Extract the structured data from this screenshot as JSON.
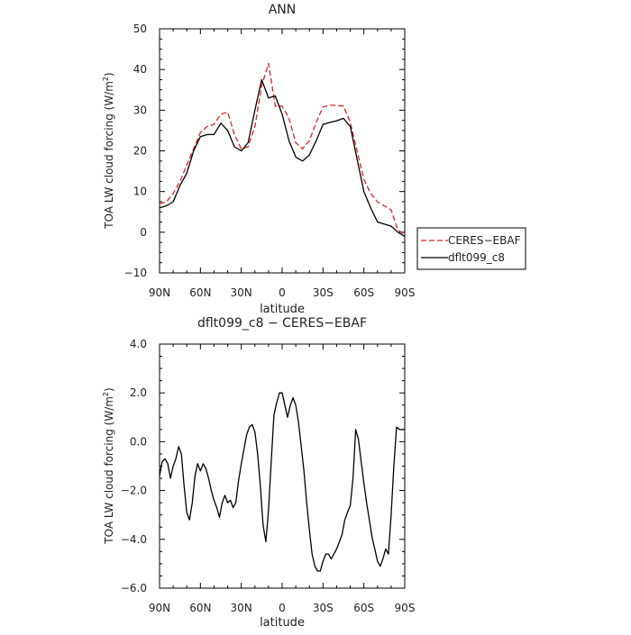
{
  "chart_data": [
    {
      "type": "line",
      "title": "ANN",
      "xlabel": "latitude",
      "ylabel": "TOA LW cloud forcing (W/m",
      "ylabel_sup": "2",
      "ylabel_close": ")",
      "xlim": [
        90,
        -90
      ],
      "ylim": [
        -10,
        50
      ],
      "x_ticks": [
        90,
        60,
        30,
        0,
        -30,
        -60,
        -90
      ],
      "x_tick_labels": [
        "90N",
        "60N",
        "30N",
        "0",
        "30S",
        "60S",
        "90S"
      ],
      "y_ticks": [
        -10,
        0,
        10,
        20,
        30,
        40,
        50
      ],
      "y_tick_labels": [
        "−10",
        "0",
        "10",
        "20",
        "30",
        "40",
        "50"
      ],
      "grid": false,
      "legend_placement": "right, outside plot",
      "series": [
        {
          "name": "CERES−EBAF",
          "color": "#dd2222",
          "dash": "dashed",
          "x": [
            90,
            85,
            80,
            75,
            70,
            65,
            60,
            55,
            50,
            45,
            40,
            35,
            30,
            25,
            20,
            15,
            10,
            5,
            0,
            -5,
            -10,
            -15,
            -20,
            -25,
            -30,
            -35,
            -40,
            -45,
            -50,
            -55,
            -60,
            -65,
            -70,
            -75,
            -80,
            -85,
            -90
          ],
          "y": [
            7,
            7.5,
            9.5,
            12.5,
            16.5,
            20.5,
            24.5,
            26,
            26.5,
            29,
            29.5,
            24,
            20.5,
            21,
            26,
            36,
            41.5,
            31,
            31,
            28,
            22,
            20.5,
            22.5,
            27,
            30.8,
            31.2,
            31.2,
            31,
            27,
            20,
            13,
            9.5,
            7.5,
            6.5,
            5.5,
            0.5,
            -0.5
          ]
        },
        {
          "name": "dflt099_c8",
          "color": "#000000",
          "dash": "solid",
          "x": [
            90,
            85,
            80,
            75,
            70,
            65,
            60,
            55,
            50,
            45,
            40,
            35,
            30,
            25,
            20,
            15,
            10,
            5,
            0,
            -5,
            -10,
            -15,
            -20,
            -25,
            -30,
            -35,
            -40,
            -45,
            -50,
            -55,
            -60,
            -65,
            -70,
            -75,
            -80,
            -85,
            -90
          ],
          "y": [
            6,
            6.5,
            7.5,
            11.5,
            14.5,
            20,
            23.5,
            24,
            24,
            26.8,
            25,
            21,
            20,
            22,
            30,
            37.5,
            33,
            33.5,
            29,
            22.5,
            18.5,
            17.5,
            19,
            22.5,
            26.5,
            27,
            27.4,
            28,
            26,
            18,
            10,
            6,
            2.5,
            2,
            1.5,
            0,
            -1
          ]
        }
      ]
    },
    {
      "type": "line",
      "title": "dflt099_c8 − CERES−EBAF",
      "xlabel": "latitude",
      "ylabel": "TOA LW cloud forcing (W/m",
      "ylabel_sup": "2",
      "ylabel_close": ")",
      "xlim": [
        90,
        -90
      ],
      "ylim": [
        -6,
        4
      ],
      "x_ticks": [
        90,
        60,
        30,
        0,
        -30,
        -60,
        -90
      ],
      "x_tick_labels": [
        "90N",
        "60N",
        "30N",
        "0",
        "30S",
        "60S",
        "90S"
      ],
      "y_ticks": [
        -6,
        -4,
        -2,
        0,
        2,
        4
      ],
      "y_tick_labels": [
        "−6.0",
        "−4.0",
        "−2.0",
        "0.0",
        "2.0",
        "4.0"
      ],
      "grid": false,
      "series": [
        {
          "color": "#000000",
          "dash": "solid",
          "x": [
            90,
            88,
            86,
            84,
            82,
            80,
            78,
            76,
            74,
            72,
            70,
            68,
            66,
            64,
            62,
            60,
            58,
            56,
            54,
            52,
            50,
            48,
            46,
            44,
            42,
            40,
            38,
            36,
            34,
            32,
            30,
            28,
            26,
            24,
            22,
            20,
            18,
            16,
            14,
            12,
            10,
            8,
            6,
            4,
            2,
            0,
            -2,
            -4,
            -6,
            -8,
            -10,
            -12,
            -14,
            -16,
            -18,
            -20,
            -22,
            -24,
            -26,
            -28,
            -30,
            -32,
            -34,
            -36,
            -38,
            -40,
            -42,
            -44,
            -46,
            -48,
            -50,
            -52,
            -54,
            -56,
            -58,
            -60,
            -62,
            -64,
            -66,
            -68,
            -70,
            -72,
            -74,
            -76,
            -78,
            -80,
            -82,
            -84,
            -86,
            -88,
            -90
          ],
          "y": [
            -1.4,
            -0.8,
            -0.7,
            -0.9,
            -1.5,
            -1.0,
            -0.7,
            -0.2,
            -0.5,
            -1.8,
            -2.9,
            -3.2,
            -2.5,
            -1.4,
            -0.9,
            -1.2,
            -0.9,
            -1.1,
            -1.5,
            -2.0,
            -2.4,
            -2.7,
            -3.1,
            -2.5,
            -2.2,
            -2.5,
            -2.4,
            -2.7,
            -2.5,
            -1.6,
            -0.9,
            -0.3,
            0.3,
            0.6,
            0.7,
            0.4,
            -0.5,
            -1.8,
            -3.4,
            -4.1,
            -2.8,
            -0.8,
            1.1,
            1.6,
            2.0,
            2.0,
            1.5,
            1.0,
            1.5,
            1.8,
            1.5,
            0.8,
            -0.2,
            -1.2,
            -2.5,
            -3.6,
            -4.6,
            -5.1,
            -5.3,
            -5.3,
            -4.9,
            -4.6,
            -4.6,
            -4.8,
            -4.6,
            -4.4,
            -4.1,
            -3.8,
            -3.2,
            -2.9,
            -2.6,
            -1.5,
            0.5,
            0.1,
            -0.8,
            -1.7,
            -2.5,
            -3.2,
            -3.9,
            -4.4,
            -4.9,
            -5.1,
            -4.8,
            -4.4,
            -4.6,
            -3.0,
            -1.0,
            0.6,
            0.5,
            0.5,
            0.5
          ]
        }
      ]
    }
  ]
}
